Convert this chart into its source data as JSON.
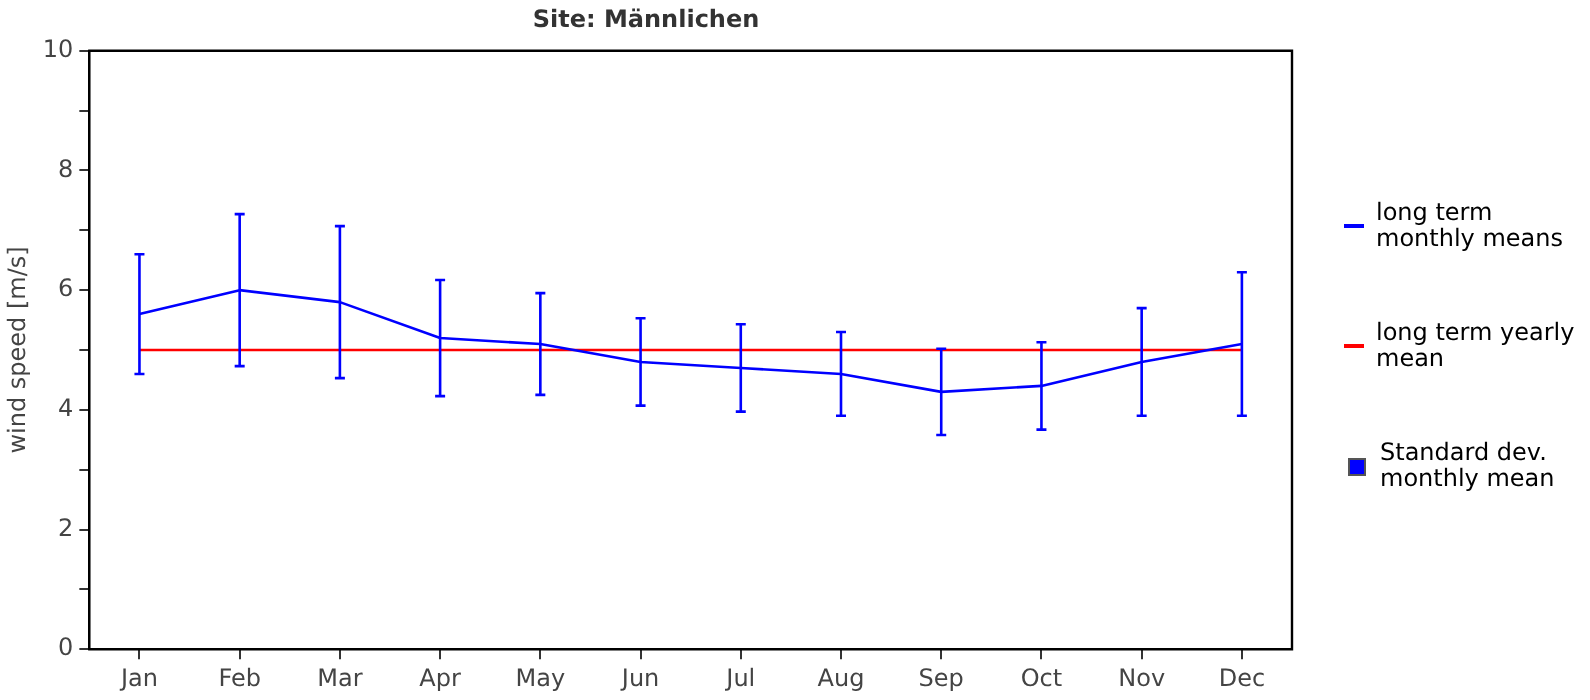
{
  "chart_data": {
    "type": "line",
    "title": "Site: Männlichen",
    "ylabel": "wind speed [m/s]",
    "categories": [
      "Jan",
      "Feb",
      "Mar",
      "Apr",
      "May",
      "Jun",
      "Jul",
      "Aug",
      "Sep",
      "Oct",
      "Nov",
      "Dec"
    ],
    "series": [
      {
        "name": "long term monthly means",
        "color": "#0000ff",
        "values": [
          5.6,
          6.0,
          5.8,
          5.2,
          5.1,
          4.8,
          4.7,
          4.6,
          4.3,
          4.4,
          4.8,
          5.1
        ],
        "errors": [
          1.0,
          1.27,
          1.27,
          0.97,
          0.85,
          0.73,
          0.73,
          0.7,
          0.72,
          0.73,
          0.9,
          1.2
        ]
      },
      {
        "name": "long term yearly mean",
        "color": "#ff0000",
        "values": [
          5,
          5,
          5,
          5,
          5,
          5,
          5,
          5,
          5,
          5,
          5,
          5
        ]
      }
    ],
    "annotations": [
      "Standard dev. monthly mean"
    ],
    "ylim": [
      0,
      10
    ],
    "yticks": [
      0,
      {
        "value": 1,
        "label": null
      },
      2,
      {
        "value": 3,
        "label": null
      },
      4,
      {
        "value": 5,
        "label": null
      },
      6,
      {
        "value": 7,
        "label": null
      },
      8,
      {
        "value": 9,
        "label": null
      },
      10
    ],
    "legend": "right",
    "marker": "none"
  }
}
